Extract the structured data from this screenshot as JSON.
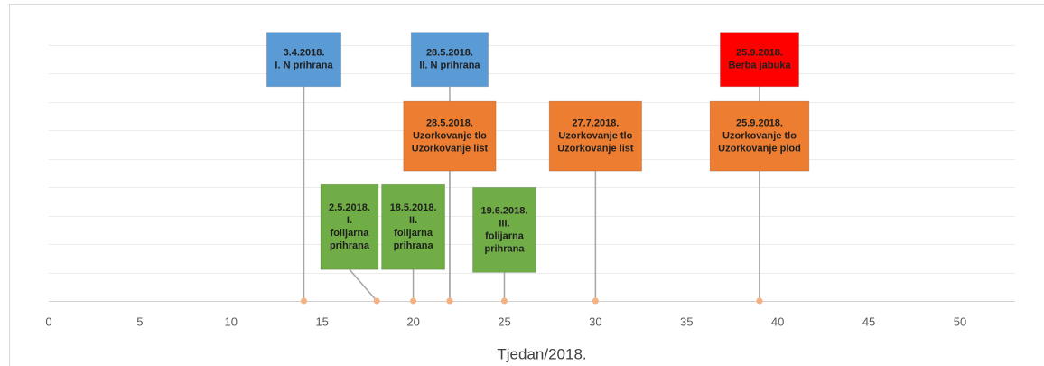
{
  "chart_data": {
    "type": "timeline",
    "x_label": "Tjedan/2018.",
    "xlim": [
      0,
      53
    ],
    "xticks": [
      0,
      5,
      10,
      15,
      20,
      25,
      30,
      35,
      40,
      45,
      50
    ],
    "ylim": [
      0,
      9
    ],
    "yticks": [
      0,
      1,
      2,
      3,
      4,
      5,
      6,
      7,
      8,
      9
    ],
    "grid": true,
    "point_color": "#f4b183",
    "leader_color": "#a6a6a6",
    "events": [
      {
        "x": 14,
        "label_x": 14,
        "y": 8.5,
        "color": "#5b9bd5",
        "lines": [
          "3.4.2018.",
          "I. N prihrana"
        ]
      },
      {
        "x": 18,
        "label_x": 16.5,
        "y": 2.6,
        "color": "#70ad47",
        "lines": [
          "2.5.2018.",
          "I.",
          "folijarna",
          "prihrana"
        ]
      },
      {
        "x": 20,
        "label_x": 20,
        "y": 2.6,
        "color": "#70ad47",
        "lines": [
          "18.5.2018.",
          "II.",
          "folijarna",
          "prihrana"
        ]
      },
      {
        "x": 22,
        "label_x": 22,
        "y": 8.5,
        "color": "#5b9bd5",
        "lines": [
          "28.5.2018.",
          "II. N prihrana"
        ]
      },
      {
        "x": 22,
        "label_x": 22,
        "y": 5.8,
        "color": "#ed7d31",
        "lines": [
          "28.5.2018.",
          "Uzorkovanje tlo",
          "Uzorkovanje list"
        ]
      },
      {
        "x": 25,
        "label_x": 25,
        "y": 2.5,
        "color": "#70ad47",
        "lines": [
          "19.6.2018.",
          "III.",
          "folijarna",
          "prihrana"
        ]
      },
      {
        "x": 30,
        "label_x": 30,
        "y": 5.8,
        "color": "#ed7d31",
        "lines": [
          "27.7.2018.",
          "Uzorkovanje tlo",
          "Uzorkovanje list"
        ]
      },
      {
        "x": 39,
        "label_x": 39,
        "y": 8.5,
        "color": "#ff0000",
        "lines": [
          "25.9.2018.",
          "Berba jabuka"
        ]
      },
      {
        "x": 39,
        "label_x": 39,
        "y": 5.8,
        "color": "#ed7d31",
        "lines": [
          "25.9.2018.",
          "Uzorkovanje tlo",
          "Uzorkovanje plod"
        ]
      }
    ]
  }
}
